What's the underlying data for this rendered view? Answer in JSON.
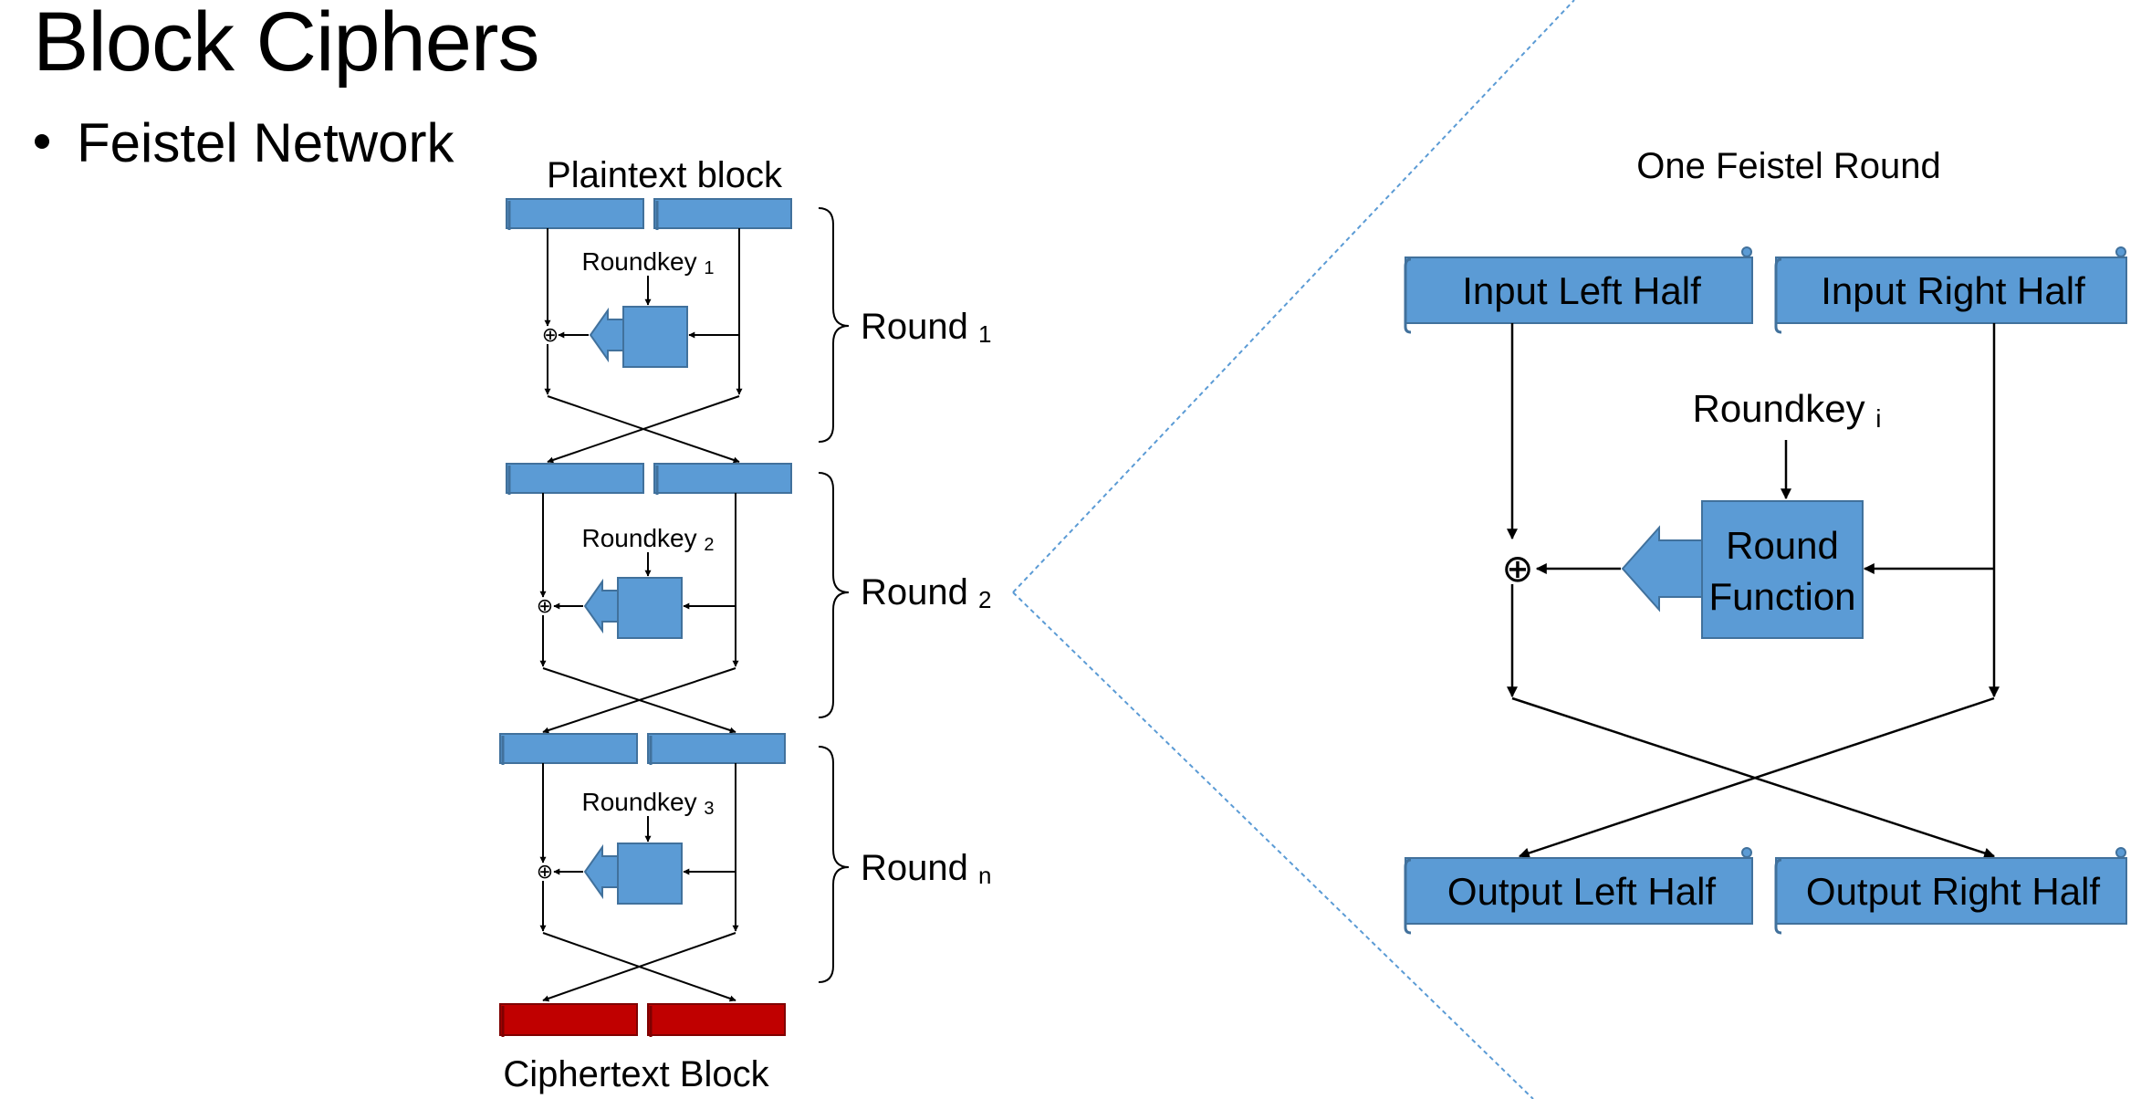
{
  "slide": {
    "title": "Block Ciphers",
    "bullet": "Feistel Network"
  },
  "overview": {
    "input_label": "Plaintext block",
    "output_label": "Ciphertext Block",
    "rounds": [
      {
        "roundkey_label": "Roundkey",
        "roundkey_sub": "1",
        "round_label": "Round",
        "round_sub": "1"
      },
      {
        "roundkey_label": "Roundkey",
        "roundkey_sub": "2",
        "round_label": "Round",
        "round_sub": "2"
      },
      {
        "roundkey_label": "Roundkey",
        "roundkey_sub": "3",
        "round_label": "Round",
        "round_sub": "n"
      }
    ]
  },
  "detail": {
    "title": "One Feistel Round",
    "input_left": "Input Left Half",
    "input_right": "Input Right Half",
    "roundkey_label": "Roundkey",
    "roundkey_sub": "i",
    "function_line1": "Round",
    "function_line2": "Function",
    "output_left": "Output Left Half",
    "output_right": "Output Right Half",
    "xor_symbol": "⊕"
  },
  "colors": {
    "block_fill": "#5b9bd5",
    "block_stroke": "#41719c",
    "output_fill": "#c00000",
    "output_stroke": "#7f0000",
    "zoom_line": "#5b9bd5"
  }
}
